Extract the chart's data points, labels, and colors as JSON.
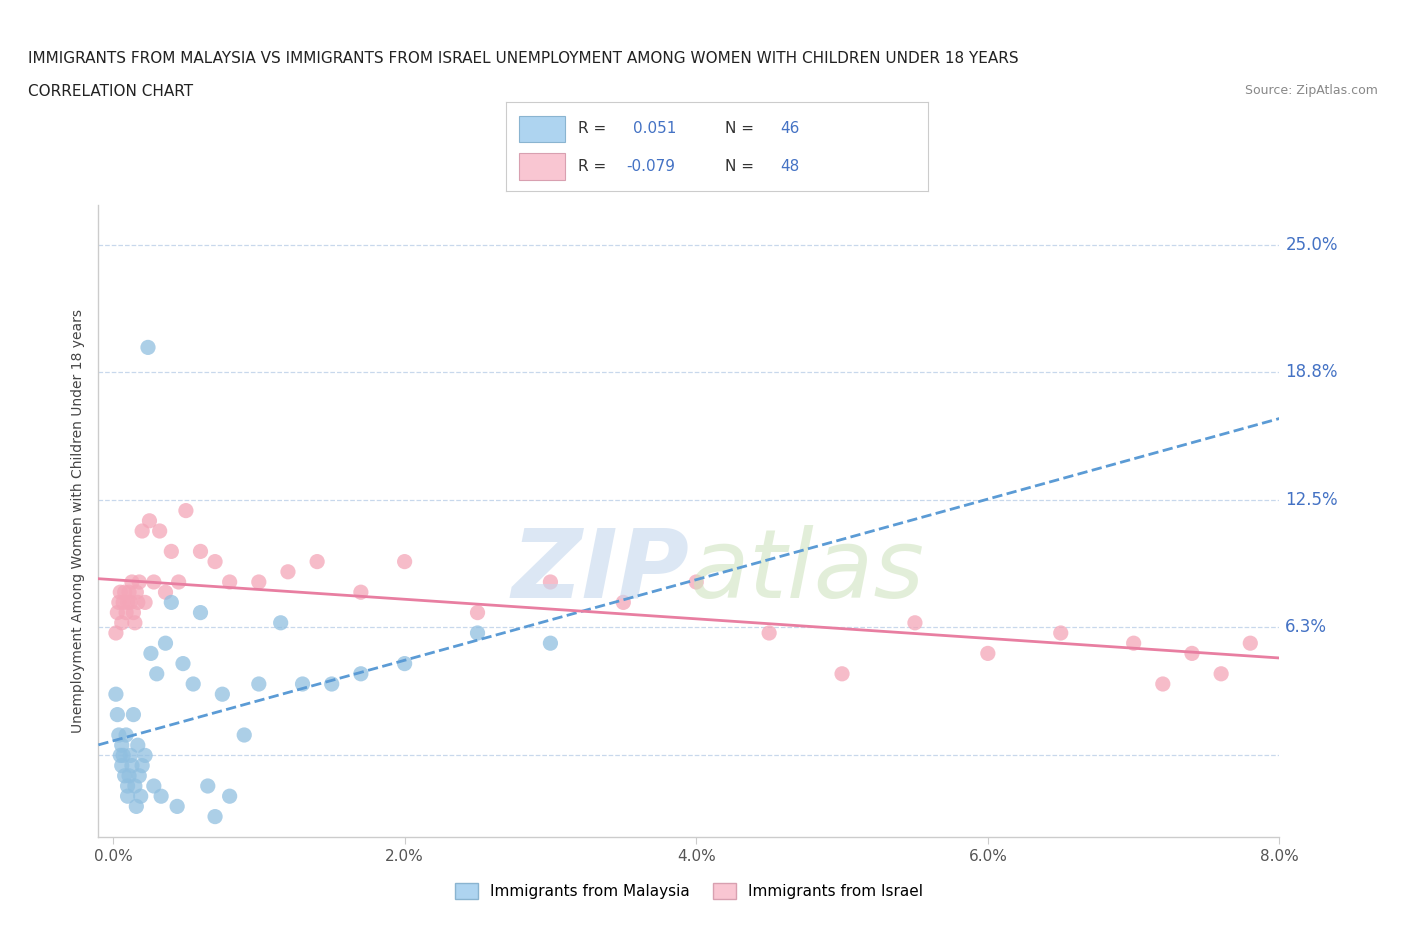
{
  "title_line1": "IMMIGRANTS FROM MALAYSIA VS IMMIGRANTS FROM ISRAEL UNEMPLOYMENT AMONG WOMEN WITH CHILDREN UNDER 18 YEARS",
  "title_line2": "CORRELATION CHART",
  "source_text": "Source: ZipAtlas.com",
  "ylabel": "Unemployment Among Women with Children Under 18 years",
  "xlim": [
    -0.001,
    0.08
  ],
  "ylim": [
    -0.04,
    0.27
  ],
  "ytick_vals": [
    0.0,
    0.063,
    0.125,
    0.188,
    0.25
  ],
  "ytick_labels": [
    "",
    "6.3%",
    "12.5%",
    "18.8%",
    "25.0%"
  ],
  "xtick_vals": [
    0.0,
    0.02,
    0.04,
    0.06,
    0.08
  ],
  "xtick_labels": [
    "0.0%",
    "2.0%",
    "4.0%",
    "6.0%",
    "8.0%"
  ],
  "blue_scatter_color": "#90bfe0",
  "pink_scatter_color": "#f4a6b8",
  "trend_blue_color": "#5b9bd5",
  "trend_pink_color": "#e87ea1",
  "grid_color": "#c8d8ec",
  "legend_label1": "Immigrants from Malaysia",
  "legend_label2": "Immigrants from Israel",
  "malaysia_x": [
    0.0002,
    0.0003,
    0.0004,
    0.0005,
    0.0006,
    0.0006,
    0.0007,
    0.0008,
    0.0009,
    0.001,
    0.001,
    0.0011,
    0.0012,
    0.0013,
    0.0014,
    0.0015,
    0.0016,
    0.0017,
    0.0018,
    0.0019,
    0.002,
    0.0022,
    0.0024,
    0.0026,
    0.0028,
    0.003,
    0.0033,
    0.0036,
    0.004,
    0.0044,
    0.0048,
    0.0055,
    0.006,
    0.0065,
    0.007,
    0.0075,
    0.008,
    0.009,
    0.01,
    0.0115,
    0.013,
    0.015,
    0.017,
    0.02,
    0.025,
    0.03
  ],
  "malaysia_y": [
    0.03,
    0.02,
    0.01,
    0.0,
    0.005,
    -0.005,
    0.0,
    -0.01,
    0.01,
    -0.015,
    -0.02,
    -0.01,
    0.0,
    -0.005,
    0.02,
    -0.015,
    -0.025,
    0.005,
    -0.01,
    -0.02,
    -0.005,
    0.0,
    0.2,
    0.05,
    -0.015,
    0.04,
    -0.02,
    0.055,
    0.075,
    -0.025,
    0.045,
    0.035,
    0.07,
    -0.015,
    -0.03,
    0.03,
    -0.02,
    0.01,
    0.035,
    0.065,
    0.035,
    0.035,
    0.04,
    0.045,
    0.06,
    0.055
  ],
  "israel_x": [
    0.0002,
    0.0003,
    0.0004,
    0.0005,
    0.0006,
    0.0007,
    0.0008,
    0.0009,
    0.001,
    0.0011,
    0.0012,
    0.0013,
    0.0014,
    0.0015,
    0.0016,
    0.0017,
    0.0018,
    0.002,
    0.0022,
    0.0025,
    0.0028,
    0.0032,
    0.0036,
    0.004,
    0.0045,
    0.005,
    0.006,
    0.007,
    0.008,
    0.01,
    0.012,
    0.014,
    0.017,
    0.02,
    0.025,
    0.03,
    0.035,
    0.04,
    0.045,
    0.05,
    0.055,
    0.06,
    0.065,
    0.07,
    0.072,
    0.074,
    0.076,
    0.078
  ],
  "israel_y": [
    0.06,
    0.07,
    0.075,
    0.08,
    0.065,
    0.075,
    0.08,
    0.07,
    0.075,
    0.08,
    0.075,
    0.085,
    0.07,
    0.065,
    0.08,
    0.075,
    0.085,
    0.11,
    0.075,
    0.115,
    0.085,
    0.11,
    0.08,
    0.1,
    0.085,
    0.12,
    0.1,
    0.095,
    0.085,
    0.085,
    0.09,
    0.095,
    0.08,
    0.095,
    0.07,
    0.085,
    0.075,
    0.085,
    0.06,
    0.04,
    0.065,
    0.05,
    0.06,
    0.055,
    0.035,
    0.05,
    0.04,
    0.055
  ]
}
